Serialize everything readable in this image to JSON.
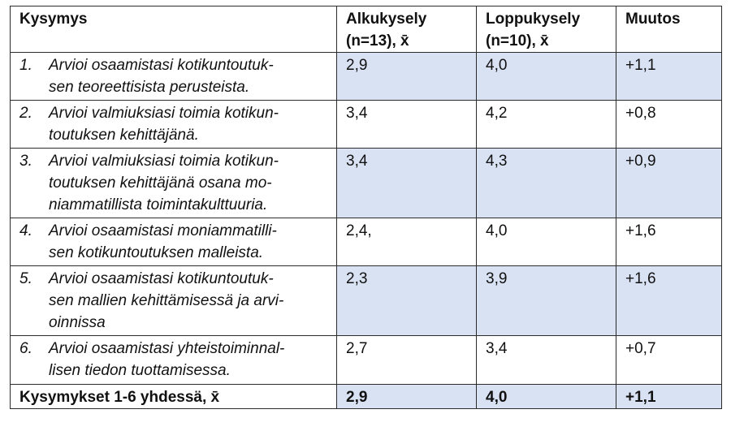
{
  "table": {
    "headers": {
      "question": "Kysymys",
      "pre_line1": "Alkukysely",
      "pre_line2": "(n=13), x̄",
      "post_line1": "Loppukysely",
      "post_line2": "(n=10), x̄",
      "change": "Muutos"
    },
    "rows": [
      {
        "num": "1.",
        "text": [
          "Arvioi osaamistasi kotikuntoutuk-",
          "sen teoreettisista perusteista."
        ],
        "pre": "2,9",
        "post": "4,0",
        "change": "+1,1"
      },
      {
        "num": "2.",
        "text": [
          "Arvioi valmiuksiasi toimia kotikun-",
          "toutuksen kehittäjänä."
        ],
        "pre": "3,4",
        "post": "4,2",
        "change": "+0,8"
      },
      {
        "num": "3.",
        "text": [
          "Arvioi valmiuksiasi toimia kotikun-",
          "toutuksen kehittäjänä osana mo-",
          "niammatillista toimintakulttuuria."
        ],
        "pre": "3,4",
        "post": "4,3",
        "change": "+0,9"
      },
      {
        "num": "4.",
        "text": [
          "Arvioi osaamistasi moniammatilli-",
          "sen kotikuntoutuksen malleista."
        ],
        "pre": "2,4,",
        "post": "4,0",
        "change": "+1,6"
      },
      {
        "num": "5.",
        "text": [
          "Arvioi osaamistasi kotikuntoutuk-",
          "sen mallien kehittämisessä ja arvi-",
          "oinnissa"
        ],
        "pre": "2,3",
        "post": "3,9",
        "change": "+1,6"
      },
      {
        "num": "6.",
        "text": [
          "Arvioi osaamistasi yhteistoiminnal-",
          "lisen tiedon tuottamisessa."
        ],
        "pre": "2,7",
        "post": "3,4",
        "change": "+0,7"
      }
    ],
    "total": {
      "label": "Kysymykset 1-6 yhdessä, x̄",
      "pre": "2,9",
      "post": "4,0",
      "change": "+1,1"
    }
  }
}
